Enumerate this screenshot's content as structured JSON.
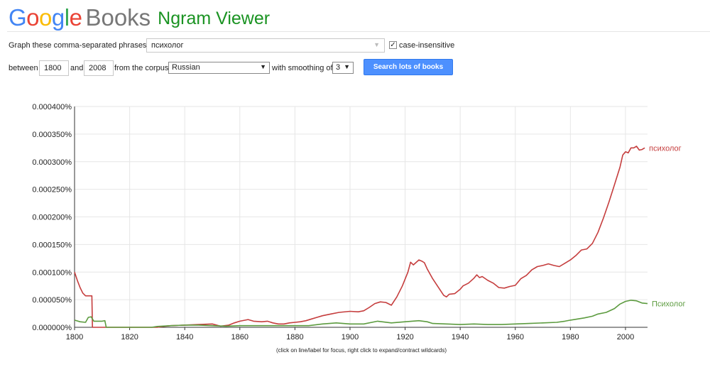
{
  "header": {
    "logo_letters": [
      {
        "ch": "G",
        "color": "#4285f4"
      },
      {
        "ch": "o",
        "color": "#ea4335"
      },
      {
        "ch": "o",
        "color": "#fbbc05"
      },
      {
        "ch": "g",
        "color": "#4285f4"
      },
      {
        "ch": "l",
        "color": "#34a853"
      },
      {
        "ch": "e",
        "color": "#ea4335"
      }
    ],
    "books": "Books",
    "product": "Ngram Viewer"
  },
  "form": {
    "phrases_label": "Graph these comma-separated phrases:",
    "phrases_value": "психолог",
    "case_insensitive_label": "case-insensitive",
    "case_insensitive_checked": true,
    "between_label": "between",
    "year_start": "1800",
    "and_label": "and",
    "year_end": "2008",
    "corpus_label": "from the corpus",
    "corpus_value": "Russian",
    "smoothing_label": "with smoothing of",
    "smoothing_value": "3",
    "search_button": "Search lots of books"
  },
  "chart_data": {
    "type": "line",
    "xlim": [
      1800,
      2008
    ],
    "ylim": [
      0,
      0.0004
    ],
    "x_ticks": [
      1800,
      1820,
      1840,
      1860,
      1880,
      1900,
      1920,
      1940,
      1960,
      1980,
      2000
    ],
    "y_ticks": [
      "0.000000%",
      "0.000050%",
      "0.000100%",
      "0.000150%",
      "0.000200%",
      "0.000250%",
      "0.000300%",
      "0.000350%",
      "0.000400%"
    ],
    "y_tick_values": [
      0,
      5e-05,
      0.0001,
      0.00015,
      0.0002,
      0.00025,
      0.0003,
      0.00035,
      0.0004
    ],
    "grid": true,
    "series": [
      {
        "name": "психолог",
        "color": "#c53d3d",
        "points": [
          [
            1800,
            0.0001
          ],
          [
            1801,
            8.5e-05
          ],
          [
            1802,
            7.2e-05
          ],
          [
            1803,
            6.2e-05
          ],
          [
            1804,
            5.7e-05
          ],
          [
            1806,
            5.7e-05
          ],
          [
            1806.3,
            5.7e-05
          ],
          [
            1806.5,
            0
          ],
          [
            1830,
            0
          ],
          [
            1832,
            1.5e-06
          ],
          [
            1835,
            3e-06
          ],
          [
            1840,
            4e-06
          ],
          [
            1845,
            5e-06
          ],
          [
            1850,
            6e-06
          ],
          [
            1853,
            2e-06
          ],
          [
            1856,
            4e-06
          ],
          [
            1858,
            8e-06
          ],
          [
            1860,
            1.1e-05
          ],
          [
            1863,
            1.4e-05
          ],
          [
            1865,
            1.1e-05
          ],
          [
            1868,
            1e-05
          ],
          [
            1870,
            1.1e-05
          ],
          [
            1872,
            8e-06
          ],
          [
            1874,
            6e-06
          ],
          [
            1876,
            6e-06
          ],
          [
            1878,
            8e-06
          ],
          [
            1880,
            9e-06
          ],
          [
            1882,
            1e-05
          ],
          [
            1884,
            1.2e-05
          ],
          [
            1886,
            1.5e-05
          ],
          [
            1888,
            1.8e-05
          ],
          [
            1890,
            2.1e-05
          ],
          [
            1893,
            2.4e-05
          ],
          [
            1896,
            2.7e-05
          ],
          [
            1900,
            2.9e-05
          ],
          [
            1903,
            2.8e-05
          ],
          [
            1905,
            3e-05
          ],
          [
            1907,
            3.6e-05
          ],
          [
            1909,
            4.3e-05
          ],
          [
            1911,
            4.6e-05
          ],
          [
            1913,
            4.5e-05
          ],
          [
            1915,
            4e-05
          ],
          [
            1917,
            5.5e-05
          ],
          [
            1919,
            7.5e-05
          ],
          [
            1921,
            0.0001
          ],
          [
            1922,
            0.000118
          ],
          [
            1923,
            0.000113
          ],
          [
            1925,
            0.000122
          ],
          [
            1926,
            0.00012
          ],
          [
            1927,
            0.000117
          ],
          [
            1928,
            0.000106
          ],
          [
            1930,
            8.8e-05
          ],
          [
            1932,
            7.3e-05
          ],
          [
            1934,
            5.8e-05
          ],
          [
            1935,
            5.5e-05
          ],
          [
            1936,
            6e-05
          ],
          [
            1938,
            6.1e-05
          ],
          [
            1940,
            6.9e-05
          ],
          [
            1941,
            7.5e-05
          ],
          [
            1943,
            8e-05
          ],
          [
            1945,
            8.9e-05
          ],
          [
            1946,
            9.5e-05
          ],
          [
            1947,
            9e-05
          ],
          [
            1948,
            9.2e-05
          ],
          [
            1950,
            8.5e-05
          ],
          [
            1952,
            8e-05
          ],
          [
            1954,
            7.2e-05
          ],
          [
            1956,
            7.1e-05
          ],
          [
            1958,
            7.4e-05
          ],
          [
            1960,
            7.6e-05
          ],
          [
            1962,
            8.8e-05
          ],
          [
            1964,
            9.4e-05
          ],
          [
            1966,
            0.000104
          ],
          [
            1968,
            0.00011
          ],
          [
            1970,
            0.000112
          ],
          [
            1972,
            0.000115
          ],
          [
            1974,
            0.000112
          ],
          [
            1976,
            0.00011
          ],
          [
            1978,
            0.000116
          ],
          [
            1980,
            0.000122
          ],
          [
            1982,
            0.00013
          ],
          [
            1984,
            0.00014
          ],
          [
            1986,
            0.000142
          ],
          [
            1988,
            0.000152
          ],
          [
            1990,
            0.000172
          ],
          [
            1992,
            0.000198
          ],
          [
            1994,
            0.000227
          ],
          [
            1996,
            0.000258
          ],
          [
            1998,
            0.00029
          ],
          [
            1999,
            0.000312
          ],
          [
            2000,
            0.000318
          ],
          [
            2001,
            0.000316
          ],
          [
            2002,
            0.000325
          ],
          [
            2003,
            0.000325
          ],
          [
            2004,
            0.000328
          ],
          [
            2005,
            0.000321
          ],
          [
            2006,
            0.000322
          ],
          [
            2007,
            0.000325
          ]
        ]
      },
      {
        "name": "Психолог",
        "color": "#5c9b3f",
        "points": [
          [
            1800,
            1.3e-05
          ],
          [
            1802,
            1e-05
          ],
          [
            1804,
            9e-06
          ],
          [
            1805,
            1.8e-05
          ],
          [
            1806,
            1.9e-05
          ],
          [
            1807,
            1.1e-05
          ],
          [
            1810,
            1.1e-05
          ],
          [
            1811,
            1.2e-05
          ],
          [
            1811.5,
            0
          ],
          [
            1828,
            0
          ],
          [
            1830,
            1.5e-06
          ],
          [
            1835,
            3e-06
          ],
          [
            1840,
            4e-06
          ],
          [
            1845,
            4e-06
          ],
          [
            1850,
            3e-06
          ],
          [
            1855,
            2e-06
          ],
          [
            1860,
            3e-06
          ],
          [
            1865,
            3e-06
          ],
          [
            1870,
            3e-06
          ],
          [
            1875,
            3e-06
          ],
          [
            1880,
            3e-06
          ],
          [
            1885,
            3e-06
          ],
          [
            1890,
            6e-06
          ],
          [
            1895,
            8e-06
          ],
          [
            1900,
            6e-06
          ],
          [
            1905,
            6e-06
          ],
          [
            1910,
            1.1e-05
          ],
          [
            1915,
            8e-06
          ],
          [
            1920,
            1e-05
          ],
          [
            1925,
            1.2e-05
          ],
          [
            1928,
            1e-05
          ],
          [
            1930,
            7e-06
          ],
          [
            1935,
            6e-06
          ],
          [
            1940,
            5e-06
          ],
          [
            1945,
            6e-06
          ],
          [
            1950,
            5e-06
          ],
          [
            1955,
            5e-06
          ],
          [
            1960,
            6e-06
          ],
          [
            1965,
            7e-06
          ],
          [
            1970,
            8e-06
          ],
          [
            1975,
            9e-06
          ],
          [
            1978,
            1.1e-05
          ],
          [
            1980,
            1.3e-05
          ],
          [
            1985,
            1.7e-05
          ],
          [
            1988,
            2e-05
          ],
          [
            1990,
            2.4e-05
          ],
          [
            1993,
            2.7e-05
          ],
          [
            1996,
            3.4e-05
          ],
          [
            1998,
            4.2e-05
          ],
          [
            2000,
            4.7e-05
          ],
          [
            2002,
            4.9e-05
          ],
          [
            2004,
            4.8e-05
          ],
          [
            2006,
            4.4e-05
          ],
          [
            2008,
            4.3e-05
          ]
        ]
      }
    ],
    "footnote": "(click on line/label for focus, right click to expand/contract wildcards)"
  }
}
